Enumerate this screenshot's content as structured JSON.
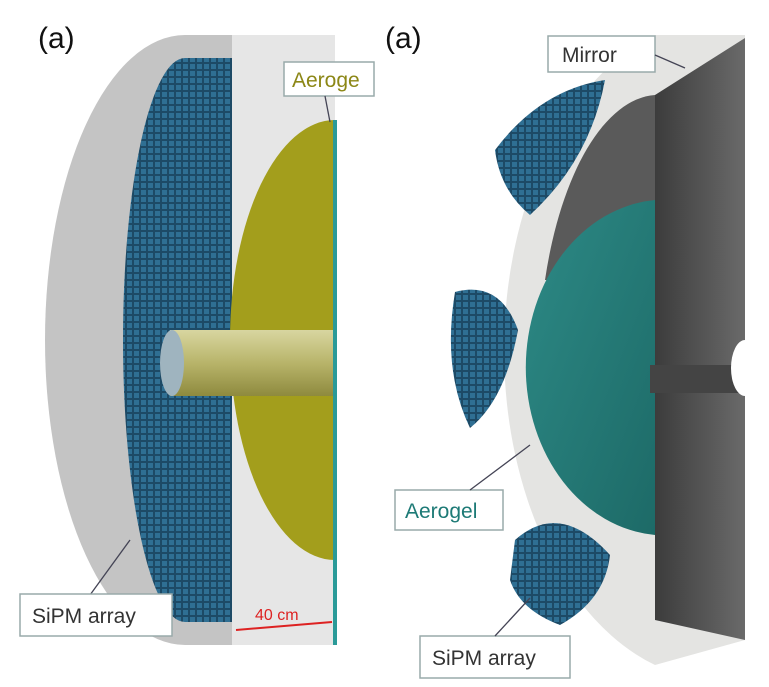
{
  "left": {
    "label": "(a)",
    "aerogel": "Aeroge",
    "sipm": "SiPM array",
    "scale": "40 cm"
  },
  "right": {
    "label": "(a)",
    "mirror": "Mirror",
    "aerogel": "Aerogel",
    "sipm": "SiPM array"
  }
}
